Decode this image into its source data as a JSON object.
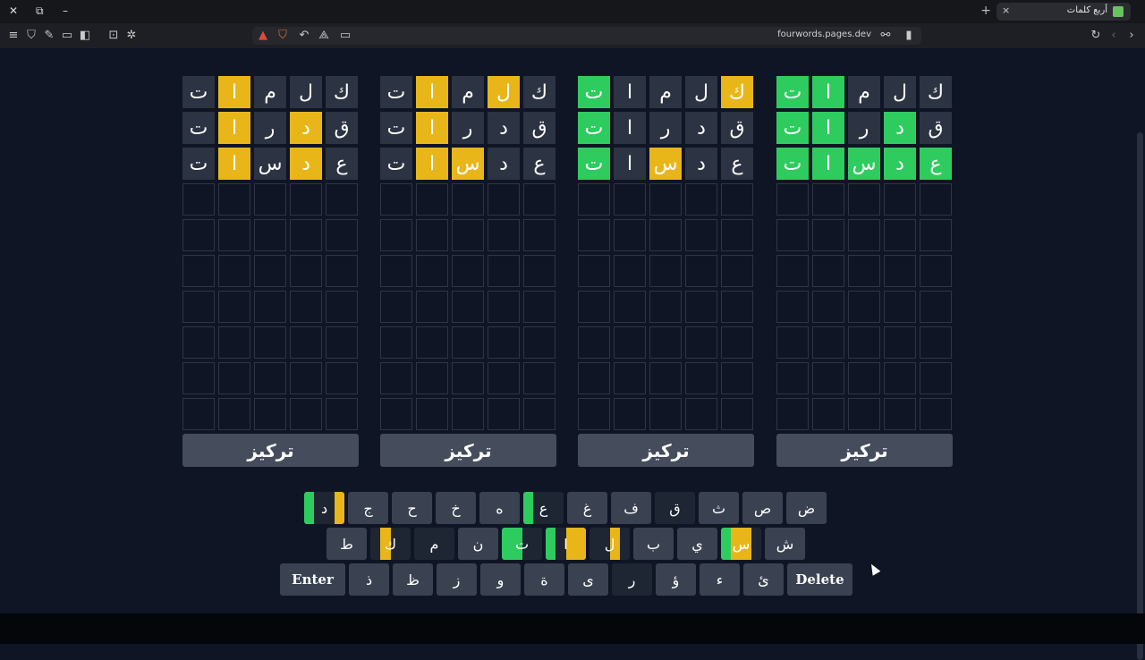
{
  "browser": {
    "tab_title": "أربع كلمات",
    "url": "fourwords.pages.dev",
    "new_tab": "+",
    "tab_close": "×",
    "win_close": "✕",
    "win_restore": "⧉",
    "win_minimize": "–"
  },
  "colors": {
    "green": "#2ecc5f",
    "yellow": "#e9b61a",
    "absent": "#2c3342",
    "key": "#3a4252"
  },
  "boards": [
    {
      "focus_label": "تركيز",
      "rows": [
        [
          {
            "l": "ت",
            "s": "a"
          },
          {
            "l": "ا",
            "s": "y"
          },
          {
            "l": "م",
            "s": "a"
          },
          {
            "l": "ل",
            "s": "a"
          },
          {
            "l": "ك",
            "s": "a"
          }
        ],
        [
          {
            "l": "ت",
            "s": "a"
          },
          {
            "l": "ا",
            "s": "y"
          },
          {
            "l": "ر",
            "s": "a"
          },
          {
            "l": "د",
            "s": "y"
          },
          {
            "l": "ق",
            "s": "a"
          }
        ],
        [
          {
            "l": "ت",
            "s": "a"
          },
          {
            "l": "ا",
            "s": "y"
          },
          {
            "l": "س",
            "s": "a"
          },
          {
            "l": "د",
            "s": "y"
          },
          {
            "l": "ع",
            "s": "a"
          }
        ]
      ]
    },
    {
      "focus_label": "تركيز",
      "rows": [
        [
          {
            "l": "ت",
            "s": "a"
          },
          {
            "l": "ا",
            "s": "y"
          },
          {
            "l": "م",
            "s": "a"
          },
          {
            "l": "ل",
            "s": "y"
          },
          {
            "l": "ك",
            "s": "a"
          }
        ],
        [
          {
            "l": "ت",
            "s": "a"
          },
          {
            "l": "ا",
            "s": "y"
          },
          {
            "l": "ر",
            "s": "a"
          },
          {
            "l": "د",
            "s": "a"
          },
          {
            "l": "ق",
            "s": "a"
          }
        ],
        [
          {
            "l": "ت",
            "s": "a"
          },
          {
            "l": "ا",
            "s": "y"
          },
          {
            "l": "س",
            "s": "y"
          },
          {
            "l": "د",
            "s": "a"
          },
          {
            "l": "ع",
            "s": "a"
          }
        ]
      ]
    },
    {
      "focus_label": "تركيز",
      "rows": [
        [
          {
            "l": "ت",
            "s": "g"
          },
          {
            "l": "ا",
            "s": "a"
          },
          {
            "l": "م",
            "s": "a"
          },
          {
            "l": "ل",
            "s": "a"
          },
          {
            "l": "ك",
            "s": "y"
          }
        ],
        [
          {
            "l": "ت",
            "s": "g"
          },
          {
            "l": "ا",
            "s": "a"
          },
          {
            "l": "ر",
            "s": "a"
          },
          {
            "l": "د",
            "s": "a"
          },
          {
            "l": "ق",
            "s": "a"
          }
        ],
        [
          {
            "l": "ت",
            "s": "g"
          },
          {
            "l": "ا",
            "s": "a"
          },
          {
            "l": "س",
            "s": "y"
          },
          {
            "l": "د",
            "s": "a"
          },
          {
            "l": "ع",
            "s": "a"
          }
        ]
      ]
    },
    {
      "focus_label": "تركيز",
      "rows": [
        [
          {
            "l": "ت",
            "s": "g"
          },
          {
            "l": "ا",
            "s": "g"
          },
          {
            "l": "م",
            "s": "a"
          },
          {
            "l": "ل",
            "s": "a"
          },
          {
            "l": "ك",
            "s": "a"
          }
        ],
        [
          {
            "l": "ت",
            "s": "g"
          },
          {
            "l": "ا",
            "s": "g"
          },
          {
            "l": "ر",
            "s": "a"
          },
          {
            "l": "د",
            "s": "g"
          },
          {
            "l": "ق",
            "s": "a"
          }
        ],
        [
          {
            "l": "ت",
            "s": "g"
          },
          {
            "l": "ا",
            "s": "g"
          },
          {
            "l": "س",
            "s": "g"
          },
          {
            "l": "د",
            "s": "g"
          },
          {
            "l": "ع",
            "s": "g"
          }
        ]
      ]
    }
  ],
  "total_rows": 10,
  "keyboard": [
    [
      {
        "l": "ض",
        "q": []
      },
      {
        "l": "ص",
        "q": []
      },
      {
        "l": "ث",
        "q": []
      },
      {
        "l": "ق",
        "q": [
          "d",
          "d",
          "d",
          "d"
        ]
      },
      {
        "l": "ف",
        "q": []
      },
      {
        "l": "غ",
        "q": []
      },
      {
        "l": "ع",
        "q": [
          "d",
          "d",
          "d",
          "g"
        ]
      },
      {
        "l": "ه",
        "q": []
      },
      {
        "l": "خ",
        "q": []
      },
      {
        "l": "ح",
        "q": []
      },
      {
        "l": "ج",
        "q": []
      },
      {
        "l": "د",
        "q": [
          "y",
          "d",
          "d",
          "g"
        ]
      }
    ],
    [
      {
        "l": "ش",
        "q": []
      },
      {
        "l": "س",
        "q": [
          "d",
          "y",
          "y",
          "g"
        ]
      },
      {
        "l": "ي",
        "q": []
      },
      {
        "l": "ب",
        "q": []
      },
      {
        "l": "ل",
        "q": [
          "d",
          "y",
          "d",
          "d"
        ]
      },
      {
        "l": "ا",
        "q": [
          "y",
          "y",
          "d",
          "g"
        ]
      },
      {
        "l": "ت",
        "q": [
          "d",
          "d",
          "g",
          "g"
        ]
      },
      {
        "l": "ن",
        "q": []
      },
      {
        "l": "م",
        "q": [
          "d",
          "d",
          "d",
          "d"
        ]
      },
      {
        "l": "ك",
        "q": [
          "d",
          "d",
          "y",
          "d"
        ]
      },
      {
        "l": "ط",
        "q": []
      }
    ],
    [
      {
        "l": "Delete",
        "q": [],
        "wide": true
      },
      {
        "l": "ئ",
        "q": []
      },
      {
        "l": "ء",
        "q": []
      },
      {
        "l": "ؤ",
        "q": []
      },
      {
        "l": "ر",
        "q": [
          "d",
          "d",
          "d",
          "d"
        ]
      },
      {
        "l": "ى",
        "q": []
      },
      {
        "l": "ة",
        "q": []
      },
      {
        "l": "و",
        "q": []
      },
      {
        "l": "ز",
        "q": []
      },
      {
        "l": "ظ",
        "q": []
      },
      {
        "l": "ذ",
        "q": []
      },
      {
        "l": "Enter",
        "q": [],
        "wide": true
      }
    ]
  ]
}
